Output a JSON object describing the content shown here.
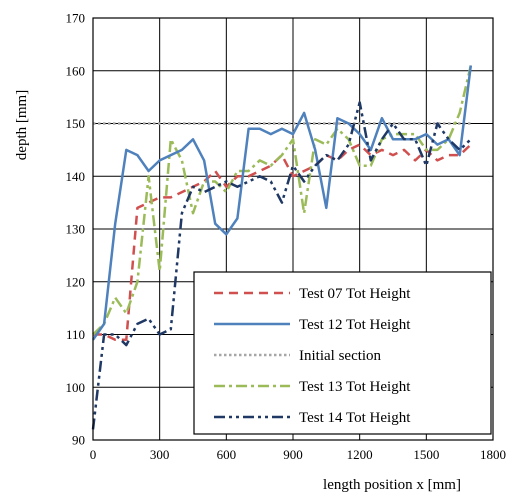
{
  "chart_data": {
    "type": "line",
    "xlabel": "length position x [mm]",
    "ylabel": "depth [mm]",
    "xlim": [
      0,
      1800
    ],
    "ylim": [
      90,
      170
    ],
    "xticks": [
      0,
      300,
      600,
      900,
      1200,
      1500,
      1800
    ],
    "yticks": [
      90,
      100,
      110,
      120,
      130,
      140,
      150,
      160,
      170
    ],
    "grid": true,
    "legend_position": "bottom-right",
    "series": [
      {
        "name": "Test 07 Tot Height",
        "color": "#d0504f",
        "style": "dashed",
        "x": [
          0,
          50,
          100,
          150,
          200,
          250,
          300,
          350,
          400,
          450,
          500,
          550,
          600,
          650,
          700,
          750,
          800,
          850,
          900,
          950,
          1000,
          1050,
          1100,
          1150,
          1200,
          1250,
          1300,
          1350,
          1400,
          1450,
          1500,
          1550,
          1600,
          1650,
          1700
        ],
        "y": [
          110,
          110,
          109,
          109,
          134,
          135,
          136,
          136,
          137,
          138,
          139,
          141,
          138,
          140,
          140,
          141,
          142,
          144,
          140,
          141,
          142,
          144,
          143,
          145,
          146,
          144,
          145,
          144,
          145,
          143,
          145,
          143,
          144,
          144,
          146
        ]
      },
      {
        "name": "Test 12 Tot Height",
        "color": "#4f81bd",
        "style": "solid",
        "x": [
          0,
          50,
          100,
          150,
          200,
          250,
          300,
          350,
          400,
          450,
          500,
          550,
          600,
          650,
          700,
          750,
          800,
          850,
          900,
          950,
          1000,
          1050,
          1100,
          1150,
          1200,
          1250,
          1300,
          1350,
          1400,
          1450,
          1500,
          1550,
          1600,
          1650,
          1700
        ],
        "y": [
          109,
          112,
          131,
          145,
          144,
          141,
          143,
          144,
          145,
          147,
          143,
          131,
          129,
          132,
          149,
          149,
          148,
          149,
          148,
          152,
          145,
          134,
          151,
          150,
          148,
          145,
          151,
          147,
          147,
          147,
          148,
          146,
          147,
          144,
          161
        ]
      },
      {
        "name": "Initial section",
        "color": "#a6a6a6",
        "style": "dotted",
        "x": [
          0,
          1700
        ],
        "y": [
          150,
          150
        ]
      },
      {
        "name": "Test 13 Tot Height",
        "color": "#9bbb59",
        "style": "dashdot",
        "x": [
          0,
          50,
          100,
          150,
          200,
          250,
          300,
          350,
          400,
          450,
          500,
          550,
          600,
          650,
          700,
          750,
          800,
          850,
          900,
          950,
          1000,
          1050,
          1100,
          1150,
          1200,
          1250,
          1300,
          1350,
          1400,
          1450,
          1500,
          1550,
          1600,
          1650,
          1700
        ],
        "y": [
          110,
          112,
          117,
          114,
          120,
          140,
          122,
          147,
          143,
          133,
          139,
          139,
          137,
          141,
          141,
          143,
          142,
          144,
          147,
          133,
          147,
          146,
          149,
          147,
          142,
          142,
          147,
          148,
          148,
          148,
          145,
          145,
          147,
          152,
          161
        ]
      },
      {
        "name": "Test 14 Tot Height",
        "color": "#1f3864",
        "style": "dashdotdot",
        "x": [
          0,
          50,
          100,
          150,
          200,
          250,
          300,
          350,
          400,
          450,
          500,
          550,
          600,
          650,
          700,
          750,
          800,
          850,
          900,
          950,
          1000,
          1050,
          1100,
          1150,
          1200,
          1250,
          1300,
          1350,
          1400,
          1450,
          1500,
          1550,
          1600,
          1650,
          1700
        ],
        "y": [
          92,
          110,
          110,
          108,
          112,
          113,
          110,
          111,
          133,
          138,
          137,
          138,
          139,
          138,
          139,
          140,
          139,
          135,
          142,
          139,
          142,
          144,
          143,
          146,
          154,
          143,
          147,
          150,
          147,
          147,
          142,
          150,
          147,
          145,
          147
        ]
      }
    ]
  }
}
